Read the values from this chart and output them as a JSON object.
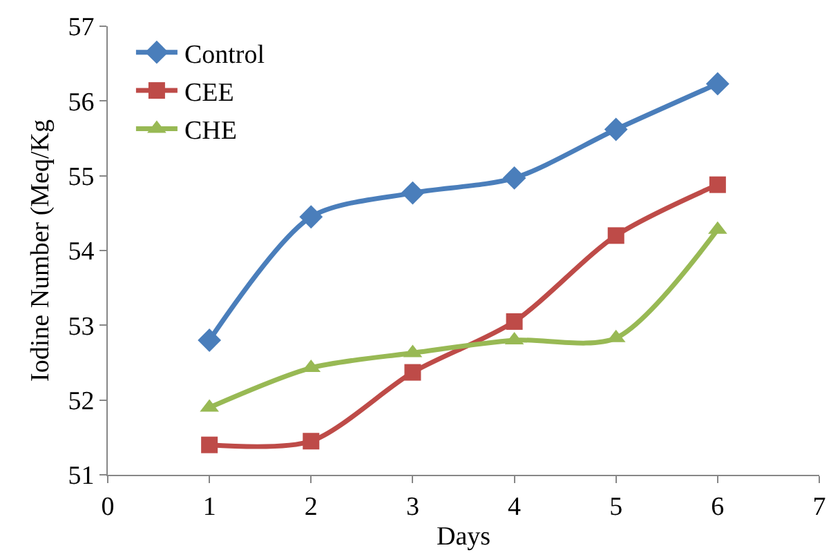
{
  "chart_data": {
    "type": "line",
    "xlabel": "Days",
    "ylabel": "Iodine Number (Meq/Kg",
    "x": [
      1,
      2,
      3,
      4,
      5,
      6
    ],
    "xlim": [
      0,
      7
    ],
    "xticks": [
      0,
      1,
      2,
      3,
      4,
      5,
      6,
      7
    ],
    "ylim": [
      51,
      57
    ],
    "yticks": [
      51,
      52,
      53,
      54,
      55,
      56,
      57
    ],
    "grid": false,
    "legend": "top left",
    "line_style": "solid",
    "series": [
      {
        "name": "Control",
        "color": "#4a7ebb",
        "marker": "diamond",
        "values": [
          52.8,
          54.45,
          54.77,
          54.97,
          55.62,
          56.23
        ]
      },
      {
        "name": "CEE",
        "color": "#be4b48",
        "marker": "square",
        "values": [
          51.4,
          51.45,
          52.37,
          53.05,
          54.2,
          54.88
        ]
      },
      {
        "name": "CHE",
        "color": "#98b954",
        "marker": "triangle",
        "values": [
          51.9,
          52.43,
          52.63,
          52.8,
          52.83,
          54.28
        ]
      }
    ]
  }
}
